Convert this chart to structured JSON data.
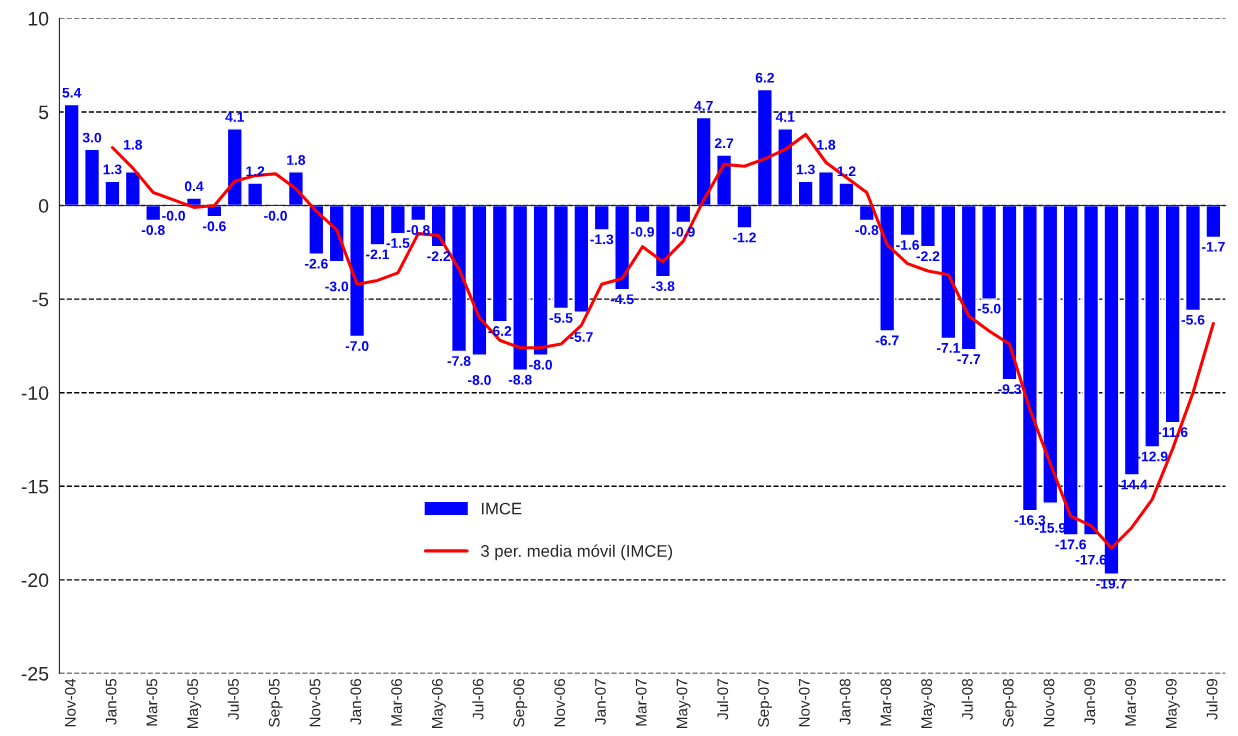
{
  "chart_data": {
    "type": "bar",
    "categories": [
      "Nov-04",
      null,
      "Jan-05",
      null,
      "Mar-05",
      null,
      "May-05",
      null,
      "Jul-05",
      null,
      "Sep-05",
      null,
      "Nov-05",
      null,
      "Jan-06",
      null,
      "Mar-06",
      null,
      "May-06",
      null,
      "Jul-06",
      null,
      "Sep-06",
      null,
      "Nov-06",
      null,
      "Jan-07",
      null,
      "Mar-07",
      null,
      "May-07",
      null,
      "Jul-07",
      null,
      "Sep-07",
      null,
      "Nov-07",
      null,
      "Jan-08",
      null,
      "Mar-08",
      null,
      "May-08",
      null,
      "Jul-08",
      null,
      "Sep-08",
      null,
      "Nov-08",
      null,
      "Jan-09",
      null,
      "Mar-09",
      null,
      "May-09",
      null,
      "Jul-09"
    ],
    "series": [
      {
        "name": "IMCE",
        "color": "#0000ff",
        "value_labels": [
          "5.4",
          "3.0",
          "1.3",
          "1.8",
          "-0.8",
          "-0.0",
          "0.4",
          "-0.6",
          "4.1",
          "1.2",
          "-0.0",
          "1.8",
          "-2.6",
          "-3.0",
          "-7.0",
          "-2.1",
          "-1.5",
          "-0.8",
          "-2.2",
          "-7.8",
          "-8.0",
          "-6.2",
          "-8.8",
          "-8.0",
          "-5.5",
          "-5.7",
          "-1.3",
          "-4.5",
          "-0.9",
          "-3.8",
          "-0.9",
          "4.7",
          "2.7",
          "-1.2",
          "6.2",
          "4.1",
          "1.3",
          "1.8",
          "1.2",
          "-0.8",
          "-6.7",
          "-1.6",
          "-2.2",
          "-7.1",
          "-7.7",
          "-5.0",
          "-9.3",
          "-16.3",
          "-15.9",
          "-17.6",
          "-17.6",
          "-19.7",
          "-14.4",
          "-12.9",
          "-11.6",
          "-5.6",
          "-1.7"
        ],
        "values": [
          5.4,
          3.0,
          1.3,
          1.8,
          -0.8,
          -0.04,
          0.4,
          -0.6,
          4.1,
          1.2,
          -0.04,
          1.8,
          -2.6,
          -3.0,
          -7.0,
          -2.1,
          -1.5,
          -0.8,
          -2.2,
          -7.8,
          -8.0,
          -6.2,
          -8.8,
          -8.0,
          -5.5,
          -5.7,
          -1.3,
          -4.5,
          -0.9,
          -3.8,
          -0.9,
          4.7,
          2.7,
          -1.2,
          6.2,
          4.1,
          1.3,
          1.8,
          1.2,
          -0.8,
          -6.7,
          -1.6,
          -2.2,
          -7.1,
          -7.7,
          -5.0,
          -9.3,
          -16.3,
          -15.9,
          -17.6,
          -17.6,
          -19.7,
          -14.4,
          -12.9,
          -11.6,
          -5.6,
          -1.7
        ]
      },
      {
        "name": "3 per. media móvil (IMCE)",
        "type": "line",
        "color": "#ff0000",
        "marker": "none",
        "line_style": "solid",
        "values": [
          null,
          null,
          3.1,
          2.0,
          0.7,
          0.3,
          -0.1,
          0.0,
          1.3,
          1.6,
          1.7,
          0.9,
          -0.3,
          -1.3,
          -4.2,
          -4.0,
          -3.6,
          -1.5,
          -1.6,
          -3.4,
          -6.0,
          -7.2,
          -7.6,
          -7.6,
          -7.4,
          -6.4,
          -4.2,
          -3.9,
          -2.2,
          -3.0,
          -1.9,
          0.3,
          2.2,
          2.1,
          2.5,
          3.0,
          3.8,
          2.3,
          1.5,
          0.7,
          -2.1,
          -3.1,
          -3.5,
          -3.7,
          -5.9,
          -6.7,
          -7.4,
          -10.9,
          -13.8,
          -16.6,
          -17.1,
          -18.3,
          -17.2,
          -15.7,
          -13.0,
          -10.0,
          -6.3
        ]
      }
    ],
    "ylim": [
      -25,
      10
    ],
    "yticks": [
      -25,
      -20,
      -15,
      -10,
      -5,
      0,
      5,
      10
    ],
    "grid": "y",
    "legend": "bottom"
  }
}
